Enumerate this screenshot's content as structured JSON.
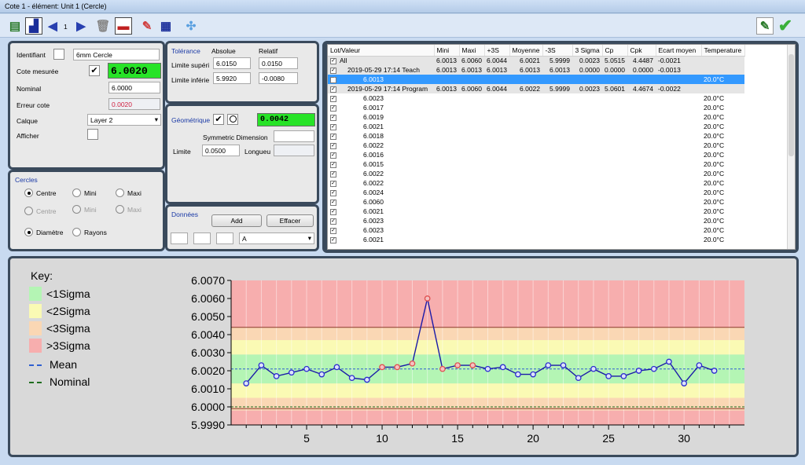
{
  "window": {
    "title": "Cote 1 - élément: Unit 1 (Cercle)"
  },
  "toolbar": {
    "page_number": "1"
  },
  "ident": {
    "identifiant_label": "Identifiant",
    "name_value": "6mm Cercle",
    "cote_mesuree_label": "Cote mesurée",
    "cote_mesuree_value": "6.0020",
    "nominal_label": "Nominal",
    "nominal_value": "6.0000",
    "erreur_label": "Erreur cote",
    "erreur_value": "0.0020",
    "calque_label": "Calque",
    "calque_value": "Layer 2",
    "afficher_label": "Afficher"
  },
  "tolerance": {
    "title": "Tolérance",
    "absolue_label": "Absolue",
    "relatif_label": "Relatif",
    "sup_label": "Limite supéri",
    "sup_abs": "6.0150",
    "sup_rel": "0.0150",
    "inf_label": "Limite inférie",
    "inf_abs": "5.9920",
    "inf_rel": "-0.0080"
  },
  "geometrique": {
    "title": "Géométrique",
    "value": "0.0042",
    "sym_label": "Symmetric Dimension",
    "limite_label": "Limite",
    "limite_value": "0.0500",
    "longueur_label": "Longueu"
  },
  "cercles": {
    "title": "Cercles",
    "row1": [
      "Centre",
      "Mini",
      "Maxi"
    ],
    "row2": [
      "Centre",
      "Mini",
      "Maxi"
    ],
    "diametre": "Diamètre",
    "rayons": "Rayons"
  },
  "donnees": {
    "title": "Données",
    "add": "Add",
    "effacer": "Effacer",
    "select_value": "A"
  },
  "table": {
    "columns": [
      "Lot/Valeur",
      "Mini",
      "Maxi",
      "+3S",
      "Moyenne",
      "-3S",
      "3 Sigma",
      "Cp",
      "Cpk",
      "Ecart moyen",
      "Temperature"
    ],
    "rows": [
      {
        "kind": "grp",
        "label": "All",
        "cells": [
          "6.0013",
          "6.0060",
          "6.0044",
          "6.0021",
          "5.9999",
          "0.0023",
          "5.0515",
          "4.4487",
          "-0.0021",
          ""
        ]
      },
      {
        "kind": "grp",
        "label": "2019-05-29 17:14 Teach",
        "cells": [
          "6.0013",
          "6.0013",
          "6.0013",
          "6.0013",
          "6.0013",
          "0.0000",
          "0.0000",
          "0.0000",
          "-0.0013",
          ""
        ]
      },
      {
        "kind": "sel",
        "label": "6.0013",
        "cells": [
          "",
          "",
          "",
          "",
          "",
          "",
          "",
          "",
          "",
          "20.0°C"
        ]
      },
      {
        "kind": "grp",
        "label": "2019-05-29 17:14 Program",
        "cells": [
          "6.0013",
          "6.0060",
          "6.0044",
          "6.0022",
          "5.9999",
          "0.0023",
          "5.0601",
          "4.4674",
          "-0.0022",
          ""
        ]
      },
      {
        "kind": "val",
        "label": "6.0023",
        "cells": [
          "",
          "",
          "",
          "",
          "",
          "",
          "",
          "",
          "",
          "20.0°C"
        ]
      },
      {
        "kind": "val",
        "label": "6.0017",
        "cells": [
          "",
          "",
          "",
          "",
          "",
          "",
          "",
          "",
          "",
          "20.0°C"
        ]
      },
      {
        "kind": "val",
        "label": "6.0019",
        "cells": [
          "",
          "",
          "",
          "",
          "",
          "",
          "",
          "",
          "",
          "20.0°C"
        ]
      },
      {
        "kind": "val",
        "label": "6.0021",
        "cells": [
          "",
          "",
          "",
          "",
          "",
          "",
          "",
          "",
          "",
          "20.0°C"
        ]
      },
      {
        "kind": "val",
        "label": "6.0018",
        "cells": [
          "",
          "",
          "",
          "",
          "",
          "",
          "",
          "",
          "",
          "20.0°C"
        ]
      },
      {
        "kind": "val",
        "label": "6.0022",
        "cells": [
          "",
          "",
          "",
          "",
          "",
          "",
          "",
          "",
          "",
          "20.0°C"
        ]
      },
      {
        "kind": "val",
        "label": "6.0016",
        "cells": [
          "",
          "",
          "",
          "",
          "",
          "",
          "",
          "",
          "",
          "20.0°C"
        ]
      },
      {
        "kind": "val",
        "label": "6.0015",
        "cells": [
          "",
          "",
          "",
          "",
          "",
          "",
          "",
          "",
          "",
          "20.0°C"
        ]
      },
      {
        "kind": "val",
        "label": "6.0022",
        "cells": [
          "",
          "",
          "",
          "",
          "",
          "",
          "",
          "",
          "",
          "20.0°C"
        ]
      },
      {
        "kind": "val",
        "label": "6.0022",
        "cells": [
          "",
          "",
          "",
          "",
          "",
          "",
          "",
          "",
          "",
          "20.0°C"
        ]
      },
      {
        "kind": "val",
        "label": "6.0024",
        "cells": [
          "",
          "",
          "",
          "",
          "",
          "",
          "",
          "",
          "",
          "20.0°C"
        ]
      },
      {
        "kind": "val",
        "label": "6.0060",
        "cells": [
          "",
          "",
          "",
          "",
          "",
          "",
          "",
          "",
          "",
          "20.0°C"
        ]
      },
      {
        "kind": "val",
        "label": "6.0021",
        "cells": [
          "",
          "",
          "",
          "",
          "",
          "",
          "",
          "",
          "",
          "20.0°C"
        ]
      },
      {
        "kind": "val",
        "label": "6.0023",
        "cells": [
          "",
          "",
          "",
          "",
          "",
          "",
          "",
          "",
          "",
          "20.0°C"
        ]
      },
      {
        "kind": "val",
        "label": "6.0023",
        "cells": [
          "",
          "",
          "",
          "",
          "",
          "",
          "",
          "",
          "",
          "20.0°C"
        ]
      },
      {
        "kind": "val",
        "label": "6.0021",
        "cells": [
          "",
          "",
          "",
          "",
          "",
          "",
          "",
          "",
          "",
          "20.0°C"
        ]
      }
    ]
  },
  "legend": {
    "title": "Key:",
    "items": [
      {
        "label": "<1Sigma",
        "color": "#b4f5b4"
      },
      {
        "label": "<2Sigma",
        "color": "#fafab4"
      },
      {
        "label": "<3Sigma",
        "color": "#fad7b4"
      },
      {
        "label": ">3Sigma",
        "color": "#f7aeae"
      }
    ],
    "mean": "Mean",
    "nominal": "Nominal"
  },
  "chart_data": {
    "type": "line",
    "ylim": [
      5.999,
      6.007
    ],
    "xlim": [
      0,
      34
    ],
    "yticks": [
      "6.0070",
      "6.0060",
      "6.0050",
      "6.0040",
      "6.0030",
      "6.0020",
      "6.0010",
      "6.0000",
      "5.9990"
    ],
    "xticks": [
      5,
      10,
      15,
      20,
      25,
      30
    ],
    "mean": 6.0021,
    "nominal": 6.0,
    "zones": [
      {
        "from": 5.999,
        "to": 5.9998,
        "color": "#f7aeae"
      },
      {
        "from": 5.9998,
        "to": 6.0005,
        "color": "#fad7b4"
      },
      {
        "from": 6.0005,
        "to": 6.0013,
        "color": "#fafab4"
      },
      {
        "from": 6.0013,
        "to": 6.0029,
        "color": "#b4f5b4"
      },
      {
        "from": 6.0029,
        "to": 6.0037,
        "color": "#fafab4"
      },
      {
        "from": 6.0037,
        "to": 6.0044,
        "color": "#fad7b4"
      },
      {
        "from": 6.0044,
        "to": 6.007,
        "color": "#f7aeae"
      }
    ],
    "limit_lines": [
      5.9999,
      6.0044
    ],
    "series": [
      {
        "x": [
          1,
          2,
          3,
          4,
          5,
          6,
          7,
          8,
          9,
          10,
          11,
          12,
          13,
          14,
          15,
          16,
          17,
          18,
          19,
          20,
          21,
          22,
          23,
          24,
          25,
          26,
          27,
          28,
          29,
          30,
          31,
          32
        ],
        "values": [
          6.0013,
          6.0023,
          6.0017,
          6.0019,
          6.0021,
          6.0018,
          6.0022,
          6.0016,
          6.0015,
          6.0022,
          6.0022,
          6.0024,
          6.006,
          6.0021,
          6.0023,
          6.0023,
          6.0021,
          6.0022,
          6.0018,
          6.0018,
          6.0023,
          6.0023,
          6.0016,
          6.0021,
          6.0017,
          6.0017,
          6.002,
          6.0021,
          6.0025,
          6.0013,
          6.0023,
          6.002
        ],
        "outliers": [
          10,
          11,
          12,
          13,
          14,
          15,
          16
        ]
      }
    ],
    "colors": {
      "line": "#1a1aa8",
      "point": "#2c2cd0",
      "outlier": "#e05050",
      "mean": "#2e5fd0",
      "nominal": "#1f6d1f"
    }
  }
}
